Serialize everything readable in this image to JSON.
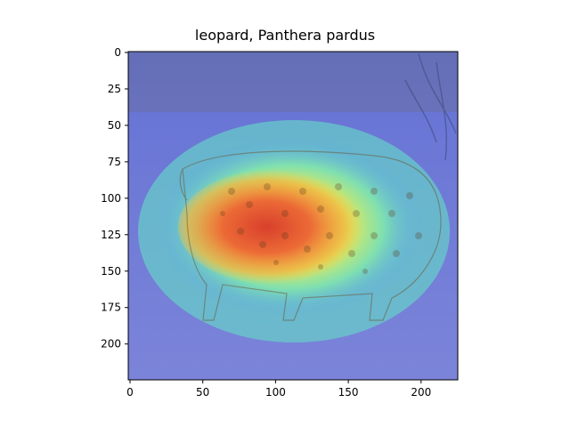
{
  "figure": {
    "title": "leopard, Panthera pardus"
  },
  "image_content": {
    "subject": "leopard",
    "overlay": "heatmap",
    "colormap": "jet",
    "peak_region": "leopard body center"
  },
  "axes": {
    "x": {
      "range": [
        0,
        224
      ],
      "ticks": [
        0,
        50,
        100,
        150,
        200
      ]
    },
    "y": {
      "range": [
        0,
        224
      ],
      "inverted": true,
      "ticks": [
        0,
        25,
        50,
        75,
        100,
        125,
        150,
        175,
        200
      ]
    }
  },
  "colors": {
    "heat_low": "#5a6ee0",
    "heat_mid": "#66e0c8",
    "heat_warm": "#f2e25a",
    "heat_hot": "#e04a2a",
    "background": "#a9acd8"
  }
}
